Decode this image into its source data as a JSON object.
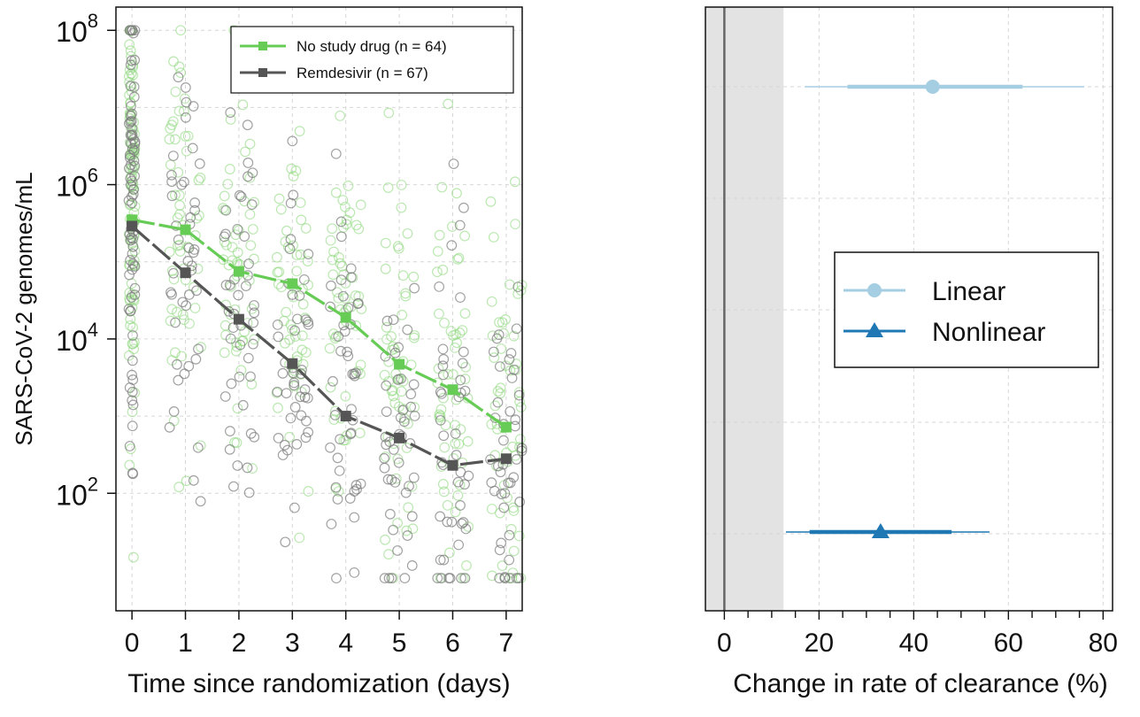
{
  "chart_data": [
    {
      "type": "scatter",
      "panel": "left",
      "xlabel": "Time since randomization (days)",
      "ylabel": "SARS-CoV-2 genomes/mL",
      "y_scale": "log10",
      "xlim": [
        -0.3,
        7.3
      ],
      "ylim": [
        3,
        200000000
      ],
      "x_ticks": [
        "0",
        "1",
        "2",
        "3",
        "4",
        "5",
        "6",
        "7"
      ],
      "y_ticks": [
        {
          "value": 100,
          "base": "10",
          "exp": "2"
        },
        {
          "value": 10000,
          "base": "10",
          "exp": "4"
        },
        {
          "value": 1000000,
          "base": "10",
          "exp": "6"
        },
        {
          "value": 100000000,
          "base": "10",
          "exp": "8"
        }
      ],
      "grid": true,
      "legend_position": "top-right",
      "series": [
        {
          "name": "No study drug (n = 64)",
          "color": "#66cc55",
          "x": [
            0,
            1,
            2,
            3,
            4,
            5,
            6,
            7
          ],
          "y": [
            350000,
            260000,
            75000,
            52000,
            19000,
            4700,
            2200,
            720
          ]
        },
        {
          "name": "Remdesivir (n = 67)",
          "color": "#555555",
          "x": [
            0,
            1,
            2,
            3,
            4,
            5,
            6,
            7
          ],
          "y": [
            290000,
            72000,
            18000,
            4800,
            1000,
            520,
            230,
            280
          ]
        }
      ]
    },
    {
      "type": "forest",
      "panel": "right",
      "xlabel": "Change in rate of clearance (%)",
      "xlim": [
        -4,
        82
      ],
      "x_ticks": [
        0,
        20,
        40,
        60,
        80
      ],
      "reference_line": 0,
      "shaded_region": [
        -4,
        12.5
      ],
      "grid": true,
      "legend_position": "center",
      "series": [
        {
          "name": "Linear",
          "marker": "circle",
          "color": "#a6cee3",
          "estimate": 44,
          "ci_inner": [
            26,
            63
          ],
          "ci_outer": [
            17,
            76
          ]
        },
        {
          "name": "Nonlinear",
          "marker": "triangle",
          "color": "#1f78b4",
          "estimate": 33,
          "ci_inner": [
            18,
            48
          ],
          "ci_outer": [
            13,
            56
          ]
        }
      ]
    }
  ]
}
